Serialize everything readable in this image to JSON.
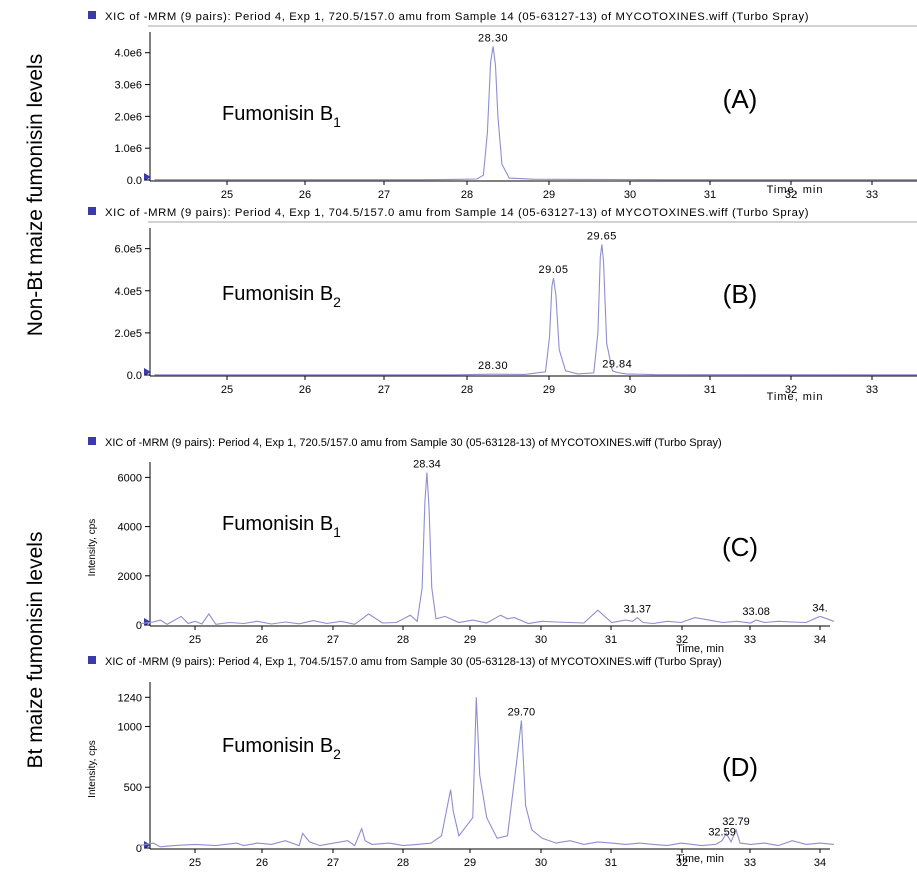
{
  "figure": {
    "group_top_label": "Non-Bt maize fumonisin levels",
    "group_bottom_label": "Bt maize fumonisin levels"
  },
  "colors": {
    "trace": "#8e8ed0",
    "axis": "#000000",
    "marker": "#3a3aa8",
    "text": "#000000"
  },
  "chart_data": [
    {
      "type": "line",
      "id": "A",
      "header": "XIC of -MRM (9 pairs): Period 4, Exp 1, 720.5/157.0 amu from Sample 14 (05-63127-13) of MYCOTOXINES.wiff (Turbo Spray)",
      "compound": "Fumonisin B",
      "compound_subscript": "1",
      "panel_label": "(A)",
      "xlabel": "Time, min",
      "ylabel": "",
      "xlim": [
        24.1,
        33.6
      ],
      "ylim": [
        0,
        4400000.0
      ],
      "x_ticks": [
        "25",
        "26",
        "27",
        "28",
        "29",
        "30",
        "31",
        "32",
        "33"
      ],
      "y_ticks": [
        {
          "value": 0,
          "label": "0.0"
        },
        {
          "value": 1000000,
          "label": "1.0e6"
        },
        {
          "value": 2000000,
          "label": "2.0e6"
        },
        {
          "value": 3000000,
          "label": "3.0e6"
        },
        {
          "value": 4000000,
          "label": "4.0e6"
        }
      ],
      "peaks": [
        {
          "x": 28.3,
          "y": 4200000,
          "label": "28.30"
        }
      ],
      "series": [
        {
          "x": [
            24.1,
            27.4,
            27.8,
            28.1,
            28.18,
            28.23,
            28.27,
            28.3,
            28.33,
            28.36,
            28.41,
            28.5,
            28.8,
            29.5,
            30.0,
            30.5,
            33.6
          ],
          "y": [
            10000,
            10000,
            20000,
            30000,
            150000,
            1500000,
            3700000,
            4200000,
            3600000,
            2000000,
            500000,
            60000,
            25000,
            20000,
            15000,
            10000,
            8000
          ]
        }
      ]
    },
    {
      "type": "line",
      "id": "B",
      "header": "XIC of -MRM (9 pairs): Period 4, Exp 1, 704.5/157.0 amu from Sample 14 (05-63127-13) of MYCOTOXINES.wiff (Turbo Spray)",
      "compound": "Fumonisin B",
      "compound_subscript": "2",
      "panel_label": "(B)",
      "xlabel": "Time, min",
      "ylabel": "",
      "xlim": [
        24.1,
        33.6
      ],
      "ylim": [
        0,
        660000.0
      ],
      "x_ticks": [
        "25",
        "26",
        "27",
        "28",
        "29",
        "30",
        "31",
        "32",
        "33"
      ],
      "y_ticks": [
        {
          "value": 0,
          "label": "0.0"
        },
        {
          "value": 200000,
          "label": "2.0e5"
        },
        {
          "value": 400000,
          "label": "4.0e5"
        },
        {
          "value": 600000,
          "label": "6.0e5"
        }
      ],
      "peaks": [
        {
          "x": 28.3,
          "y": 4000,
          "label": "28.30"
        },
        {
          "x": 29.05,
          "y": 460000,
          "label": "29.05"
        },
        {
          "x": 29.65,
          "y": 620000,
          "label": "29.65"
        },
        {
          "x": 29.84,
          "y": 12000,
          "label": "29.84"
        }
      ],
      "series": [
        {
          "x": [
            24.1,
            27.8,
            28.3,
            28.7,
            28.95,
            29.0,
            29.03,
            29.05,
            29.08,
            29.12,
            29.2,
            29.35,
            29.55,
            29.6,
            29.63,
            29.65,
            29.67,
            29.71,
            29.78,
            29.84,
            29.95,
            30.3,
            33.6
          ],
          "y": [
            1000,
            1000,
            4000,
            3000,
            15000,
            180000,
            420000,
            460000,
            380000,
            120000,
            20000,
            5000,
            10000,
            200000,
            560000,
            620000,
            540000,
            150000,
            20000,
            12000,
            5000,
            2000,
            1000
          ]
        }
      ]
    },
    {
      "type": "line",
      "id": "C",
      "header": "XIC of -MRM (9 pairs): Period 4, Exp 1, 720.5/157.0 amu from Sample 30 (05-63128-13) of MYCOTOXINES.wiff (Turbo Spray)",
      "compound": "Fumonisin B",
      "compound_subscript": "1",
      "panel_label": "(C)",
      "xlabel": "Time, min",
      "ylabel": "Intensity, cps",
      "xlim": [
        24.2,
        34.2
      ],
      "ylim": [
        0,
        6300
      ],
      "x_ticks": [
        "25",
        "26",
        "27",
        "28",
        "29",
        "30",
        "31",
        "32",
        "33",
        "34"
      ],
      "y_ticks": [
        {
          "value": 0,
          "label": "0"
        },
        {
          "value": 2000,
          "label": "2000"
        },
        {
          "value": 4000,
          "label": "4000"
        },
        {
          "value": 6000,
          "label": "6000"
        }
      ],
      "peaks": [
        {
          "x": 28.34,
          "y": 6200,
          "label": "28.34"
        },
        {
          "x": 31.37,
          "y": 300,
          "label": "31.37"
        },
        {
          "x": 33.08,
          "y": 200,
          "label": "33.08"
        },
        {
          "x": 34.0,
          "y": 350,
          "label": "34."
        }
      ],
      "series": [
        {
          "x": [
            24.2,
            24.4,
            24.5,
            24.6,
            24.8,
            24.9,
            25.0,
            25.1,
            25.2,
            25.3,
            25.5,
            25.7,
            25.9,
            26.1,
            26.3,
            26.5,
            26.7,
            26.9,
            27.1,
            27.3,
            27.5,
            27.7,
            27.9,
            28.0,
            28.1,
            28.2,
            28.27,
            28.31,
            28.34,
            28.37,
            28.41,
            28.47,
            28.6,
            28.8,
            29.0,
            29.2,
            29.4,
            29.5,
            29.6,
            29.8,
            30.0,
            30.2,
            30.4,
            30.6,
            30.8,
            31.0,
            31.2,
            31.3,
            31.37,
            31.45,
            31.6,
            31.8,
            32.0,
            32.2,
            32.4,
            32.6,
            32.8,
            33.0,
            33.08,
            33.2,
            33.4,
            33.6,
            33.8,
            34.0,
            34.2
          ],
          "y": [
            50,
            120,
            200,
            30,
            350,
            60,
            150,
            40,
            450,
            30,
            100,
            60,
            150,
            40,
            120,
            50,
            180,
            60,
            150,
            30,
            450,
            80,
            100,
            250,
            400,
            150,
            1500,
            5000,
            6200,
            4800,
            1500,
            250,
            350,
            100,
            200,
            80,
            400,
            250,
            300,
            60,
            150,
            120,
            100,
            80,
            600,
            100,
            200,
            150,
            300,
            100,
            60,
            150,
            100,
            300,
            200,
            100,
            150,
            80,
            200,
            100,
            150,
            120,
            100,
            350,
            150
          ]
        }
      ]
    },
    {
      "type": "line",
      "id": "D",
      "header": "XIC of -MRM (9 pairs): Period 4, Exp 1, 704.5/157.0 amu from Sample 30 (05-63128-13) of MYCOTOXINES.wiff (Turbo Spray)",
      "compound": "Fumonisin B",
      "compound_subscript": "2",
      "panel_label": "(D)",
      "xlabel": "Time, min",
      "ylabel": "Intensity, cps",
      "xlim": [
        24.2,
        34.2
      ],
      "ylim": [
        0,
        1300
      ],
      "x_ticks": [
        "25",
        "26",
        "27",
        "28",
        "29",
        "30",
        "31",
        "32",
        "33",
        "34"
      ],
      "y_ticks": [
        {
          "value": 0,
          "label": "0"
        },
        {
          "value": 500,
          "label": "500"
        },
        {
          "value": 1000,
          "label": "1000"
        },
        {
          "value": 1240,
          "label": "1240"
        }
      ],
      "peaks": [
        {
          "x": 29.7,
          "y": 1050,
          "label": "29.70"
        },
        {
          "x": 32.59,
          "y": 60,
          "label": "32.59"
        },
        {
          "x": 32.79,
          "y": 150,
          "label": "32.79"
        }
      ],
      "series": [
        {
          "x": [
            24.2,
            24.4,
            24.5,
            24.7,
            25.0,
            25.3,
            25.6,
            25.7,
            25.9,
            26.1,
            26.3,
            26.5,
            26.55,
            26.65,
            26.8,
            27.0,
            27.2,
            27.3,
            27.4,
            27.45,
            27.55,
            27.8,
            28.0,
            28.2,
            28.4,
            28.55,
            28.68,
            28.72,
            28.8,
            29.0,
            29.05,
            29.1,
            29.2,
            29.35,
            29.5,
            29.63,
            29.7,
            29.76,
            29.85,
            30.0,
            30.2,
            30.4,
            30.6,
            30.8,
            31.0,
            31.2,
            31.4,
            31.6,
            31.8,
            32.0,
            32.3,
            32.5,
            32.59,
            32.65,
            32.72,
            32.79,
            32.85,
            33.0,
            33.2,
            33.4,
            33.6,
            33.8,
            34.0,
            34.2
          ],
          "y": [
            20,
            40,
            10,
            20,
            30,
            20,
            40,
            20,
            40,
            30,
            60,
            20,
            120,
            50,
            20,
            40,
            60,
            20,
            160,
            60,
            30,
            40,
            20,
            30,
            40,
            100,
            480,
            300,
            100,
            250,
            1240,
            600,
            250,
            80,
            100,
            700,
            1050,
            350,
            150,
            80,
            40,
            60,
            30,
            50,
            40,
            30,
            40,
            30,
            20,
            40,
            20,
            30,
            60,
            120,
            50,
            150,
            40,
            30,
            40,
            20,
            60,
            30,
            40,
            30
          ]
        }
      ]
    }
  ]
}
